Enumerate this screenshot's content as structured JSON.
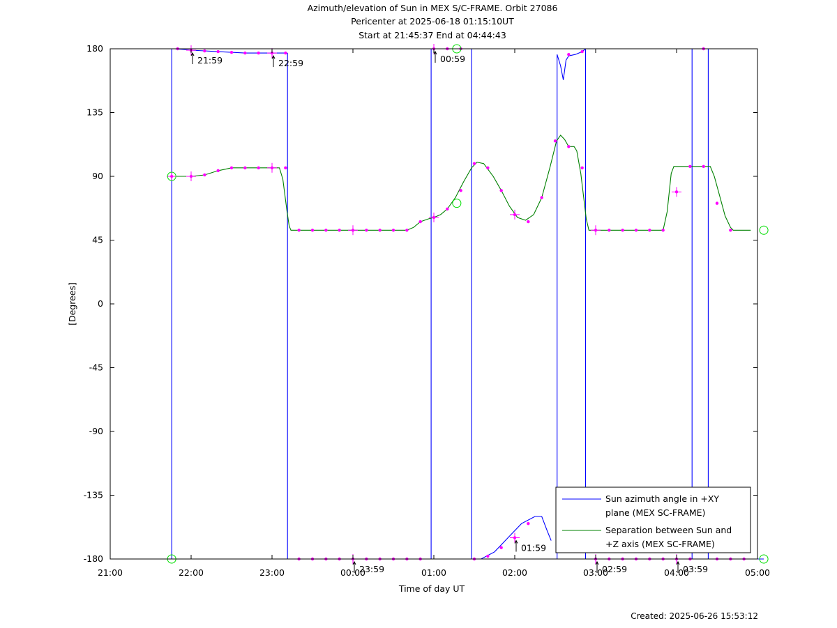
{
  "titles": {
    "line1": "Azimuth/elevation of Sun in MEX S/C-FRAME.  Orbit 27086",
    "line2": "Pericenter at 2025-06-18 01:15:10UT",
    "line3": "Start at 21:45:37 End at 04:44:43"
  },
  "footer": "Created: 2025-06-26 15:53:12",
  "chart_data": {
    "type": "line",
    "xlabel": "Time of day UT",
    "ylabel": "[Degrees]",
    "xlim": [
      0,
      480
    ],
    "ylim": [
      -180,
      180
    ],
    "x_ticks": [
      {
        "v": 0,
        "label": "21:00"
      },
      {
        "v": 60,
        "label": "22:00"
      },
      {
        "v": 120,
        "label": "23:00"
      },
      {
        "v": 180,
        "label": "00:00"
      },
      {
        "v": 240,
        "label": "01:00"
      },
      {
        "v": 300,
        "label": "02:00"
      },
      {
        "v": 360,
        "label": "03:00"
      },
      {
        "v": 420,
        "label": "04:00"
      },
      {
        "v": 480,
        "label": "05:00"
      }
    ],
    "y_ticks": [
      {
        "v": 180,
        "label": "180"
      },
      {
        "v": 135,
        "label": "135"
      },
      {
        "v": 90,
        "label": "90"
      },
      {
        "v": 45,
        "label": "45"
      },
      {
        "v": 0,
        "label": "0"
      },
      {
        "v": -45,
        "label": "-45"
      },
      {
        "v": -90,
        "label": "-90"
      },
      {
        "v": -135,
        "label": "-135"
      },
      {
        "v": -180,
        "label": "-180"
      }
    ],
    "grid": false,
    "legend_position": "bottom-right",
    "series": [
      {
        "name": "Sun azimuth angle in +XY plane (MEX SC-FRAME)",
        "legend_lines": [
          "Sun azimuth angle in +XY",
          "plane (MEX SC-FRAME)"
        ],
        "color": "#0000ff",
        "segments": [
          [
            [
              45.6,
              -180
            ],
            [
              45.6,
              180
            ]
          ],
          [
            [
              45.6,
              180
            ],
            [
              48,
              180
            ],
            [
              55,
              179.5
            ],
            [
              60,
              179
            ],
            [
              70,
              178.5
            ],
            [
              80,
              178
            ],
            [
              90,
              177.5
            ],
            [
              100,
              177
            ],
            [
              110,
              177
            ],
            [
              120,
              177
            ],
            [
              131.5,
              177
            ]
          ],
          [
            [
              131.5,
              177
            ],
            [
              131.5,
              -180
            ]
          ],
          [
            [
              131.5,
              -180
            ],
            [
              160,
              -180
            ],
            [
              180,
              -180
            ],
            [
              220,
              -180
            ],
            [
              238,
              -180
            ]
          ],
          [
            [
              238,
              -180
            ],
            [
              238,
              180
            ]
          ],
          [
            [
              238,
              180
            ],
            [
              250,
              180
            ],
            [
              260,
              180
            ],
            [
              268,
              180
            ]
          ],
          [
            [
              268,
              180
            ],
            [
              268,
              -180
            ]
          ],
          [
            [
              268,
              -180
            ],
            [
              275,
              -180
            ],
            [
              285,
              -175
            ],
            [
              295,
              -165
            ],
            [
              305,
              -155
            ],
            [
              315,
              -150
            ],
            [
              320,
              -150
            ],
            [
              324,
              -160
            ],
            [
              327,
              -167
            ]
          ],
          [
            [
              331.4,
              -180
            ],
            [
              331.4,
              176
            ],
            [
              334,
              168
            ],
            [
              336,
              158
            ],
            [
              338,
              172
            ],
            [
              340,
              175
            ],
            [
              345,
              176
            ],
            [
              350,
              178
            ],
            [
              352.5,
              180
            ]
          ],
          [
            [
              352.5,
              180
            ],
            [
              352.5,
              -180
            ]
          ],
          [
            [
              352.5,
              -180
            ],
            [
              380,
              -180
            ],
            [
              420,
              -180
            ],
            [
              431.5,
              -180
            ]
          ],
          [
            [
              431.5,
              -180
            ],
            [
              431.5,
              180
            ]
          ],
          [
            [
              443.5,
              180
            ],
            [
              443.5,
              -180
            ]
          ],
          [
            [
              443.5,
              -180
            ],
            [
              460,
              -180
            ],
            [
              470,
              -180
            ],
            [
              484.7,
              -180
            ]
          ]
        ]
      },
      {
        "name": "Separation between Sun and +Z axis (MEX SC-FRAME)",
        "legend_lines": [
          "Separation between Sun and",
          "+Z axis (MEX SC-FRAME)"
        ],
        "color": "#008000",
        "segments": [
          [
            [
              45.6,
              90
            ],
            [
              60,
              90
            ],
            [
              70,
              91
            ],
            [
              80,
              94
            ],
            [
              90,
              96
            ],
            [
              100,
              96
            ],
            [
              110,
              96
            ],
            [
              120,
              96
            ],
            [
              125.5,
              96
            ],
            [
              128,
              88
            ],
            [
              131,
              66
            ],
            [
              132.7,
              55
            ],
            [
              134,
              52
            ],
            [
              140,
              52
            ],
            [
              160,
              52
            ],
            [
              180,
              52
            ],
            [
              200,
              52
            ],
            [
              220,
              52
            ],
            [
              225,
              54
            ],
            [
              230,
              58
            ],
            [
              236,
              60
            ],
            [
              240,
              61
            ],
            [
              245,
              63
            ],
            [
              250,
              67
            ],
            [
              256,
              75
            ],
            [
              262,
              86
            ],
            [
              268,
              96
            ],
            [
              272,
              100
            ],
            [
              277,
              99
            ],
            [
              284,
              90
            ],
            [
              290,
              80
            ],
            [
              296,
              69
            ],
            [
              302,
              61
            ],
            [
              308,
              59
            ],
            [
              314,
              63
            ],
            [
              320,
              75
            ],
            [
              326,
              96
            ],
            [
              331,
              115
            ],
            [
              334,
              119
            ],
            [
              337,
              116
            ],
            [
              340,
              111
            ],
            [
              344,
              111
            ],
            [
              346,
              108
            ],
            [
              349,
              92
            ],
            [
              353,
              60
            ],
            [
              355,
              52
            ],
            [
              360,
              52
            ],
            [
              380,
              52
            ],
            [
              400,
              52
            ],
            [
              410,
              52
            ],
            [
              413,
              65
            ],
            [
              416,
              92
            ],
            [
              418,
              97
            ],
            [
              430,
              97
            ],
            [
              440,
              97
            ],
            [
              445,
              97
            ],
            [
              448,
              90
            ],
            [
              452,
              76
            ],
            [
              456,
              62
            ],
            [
              460,
              54
            ],
            [
              462,
              52
            ],
            [
              470,
              52
            ],
            [
              475,
              52
            ]
          ]
        ]
      }
    ],
    "markers": [
      {
        "x": 45.6,
        "y": 90
      },
      {
        "x": 60,
        "y": 90
      },
      {
        "x": 70,
        "y": 91
      },
      {
        "x": 80,
        "y": 94
      },
      {
        "x": 90,
        "y": 96
      },
      {
        "x": 100,
        "y": 96
      },
      {
        "x": 110,
        "y": 96
      },
      {
        "x": 120,
        "y": 96
      },
      {
        "x": 130,
        "y": 96
      },
      {
        "x": 140,
        "y": 52
      },
      {
        "x": 150,
        "y": 52
      },
      {
        "x": 160,
        "y": 52
      },
      {
        "x": 170,
        "y": 52
      },
      {
        "x": 180,
        "y": 52
      },
      {
        "x": 190,
        "y": 52
      },
      {
        "x": 200,
        "y": 52
      },
      {
        "x": 210,
        "y": 52
      },
      {
        "x": 220,
        "y": 52
      },
      {
        "x": 230,
        "y": 58
      },
      {
        "x": 240,
        "y": 61
      },
      {
        "x": 250,
        "y": 67
      },
      {
        "x": 260,
        "y": 80
      },
      {
        "x": 270,
        "y": 99
      },
      {
        "x": 280,
        "y": 96
      },
      {
        "x": 290,
        "y": 80
      },
      {
        "x": 300,
        "y": 63
      },
      {
        "x": 310,
        "y": 58
      },
      {
        "x": 320,
        "y": 75
      },
      {
        "x": 330,
        "y": 115
      },
      {
        "x": 340,
        "y": 111
      },
      {
        "x": 350,
        "y": 96
      },
      {
        "x": 360,
        "y": 52
      },
      {
        "x": 370,
        "y": 52
      },
      {
        "x": 380,
        "y": 52
      },
      {
        "x": 390,
        "y": 52
      },
      {
        "x": 400,
        "y": 52
      },
      {
        "x": 410,
        "y": 52
      },
      {
        "x": 420,
        "y": 79
      },
      {
        "x": 430,
        "y": 97
      },
      {
        "x": 440,
        "y": 97
      },
      {
        "x": 450,
        "y": 71
      },
      {
        "x": 460,
        "y": 52
      },
      {
        "x": 50,
        "y": 180
      },
      {
        "x": 60,
        "y": 179
      },
      {
        "x": 70,
        "y": 178.5
      },
      {
        "x": 80,
        "y": 178
      },
      {
        "x": 90,
        "y": 177.5
      },
      {
        "x": 100,
        "y": 177
      },
      {
        "x": 110,
        "y": 177
      },
      {
        "x": 120,
        "y": 177
      },
      {
        "x": 130,
        "y": 177
      },
      {
        "x": 140,
        "y": -180
      },
      {
        "x": 150,
        "y": -180
      },
      {
        "x": 160,
        "y": -180
      },
      {
        "x": 170,
        "y": -180
      },
      {
        "x": 180,
        "y": -180
      },
      {
        "x": 190,
        "y": -180
      },
      {
        "x": 200,
        "y": -180
      },
      {
        "x": 210,
        "y": -180
      },
      {
        "x": 220,
        "y": -180
      },
      {
        "x": 230,
        "y": -180
      },
      {
        "x": 240,
        "y": 180
      },
      {
        "x": 250,
        "y": 180
      },
      {
        "x": 260,
        "y": 180
      },
      {
        "x": 270,
        "y": -180
      },
      {
        "x": 280,
        "y": -178
      },
      {
        "x": 290,
        "y": -172
      },
      {
        "x": 300,
        "y": -165
      },
      {
        "x": 310,
        "y": -155
      },
      {
        "x": 340,
        "y": 176
      },
      {
        "x": 350,
        "y": 178
      },
      {
        "x": 360,
        "y": -180
      },
      {
        "x": 370,
        "y": -180
      },
      {
        "x": 380,
        "y": -180
      },
      {
        "x": 390,
        "y": -180
      },
      {
        "x": 400,
        "y": -180
      },
      {
        "x": 410,
        "y": -180
      },
      {
        "x": 420,
        "y": -180
      },
      {
        "x": 430,
        "y": -180
      },
      {
        "x": 440,
        "y": 180
      },
      {
        "x": 450,
        "y": -180
      },
      {
        "x": 460,
        "y": -180
      },
      {
        "x": 470,
        "y": -180
      }
    ],
    "crosses": [
      {
        "x": 45.6,
        "y": 90
      },
      {
        "x": 60,
        "y": 90
      },
      {
        "x": 120,
        "y": 96
      },
      {
        "x": 180,
        "y": 52
      },
      {
        "x": 240,
        "y": 61
      },
      {
        "x": 300,
        "y": 63
      },
      {
        "x": 360,
        "y": 52
      },
      {
        "x": 420,
        "y": 79
      },
      {
        "x": 60,
        "y": 179
      },
      {
        "x": 120,
        "y": 177
      },
      {
        "x": 240,
        "y": 180
      },
      {
        "x": 300,
        "y": -165
      },
      {
        "x": 180,
        "y": -180
      },
      {
        "x": 360,
        "y": -180
      },
      {
        "x": 420,
        "y": -180
      }
    ],
    "circles": [
      {
        "x": 45.6,
        "y": 90
      },
      {
        "x": 45.6,
        "y": -180
      },
      {
        "x": 257,
        "y": 71
      },
      {
        "x": 257,
        "y": 180
      },
      {
        "x": 484.7,
        "y": 52
      },
      {
        "x": 484.7,
        "y": -180
      }
    ],
    "annotations": [
      {
        "x": 60,
        "y": 179,
        "text": "21:59",
        "dir": "down"
      },
      {
        "x": 120,
        "y": 177,
        "text": "22:59",
        "dir": "down"
      },
      {
        "x": 240,
        "y": 180,
        "text": "00:59",
        "dir": "down"
      },
      {
        "x": 300,
        "y": -165,
        "text": "01:59",
        "dir": "down"
      },
      {
        "x": 180,
        "y": -180,
        "text": "23:59",
        "dir": "down"
      },
      {
        "x": 360,
        "y": -180,
        "text": "02:59",
        "dir": "down"
      },
      {
        "x": 420,
        "y": -180,
        "text": "03:59",
        "dir": "down"
      }
    ]
  }
}
